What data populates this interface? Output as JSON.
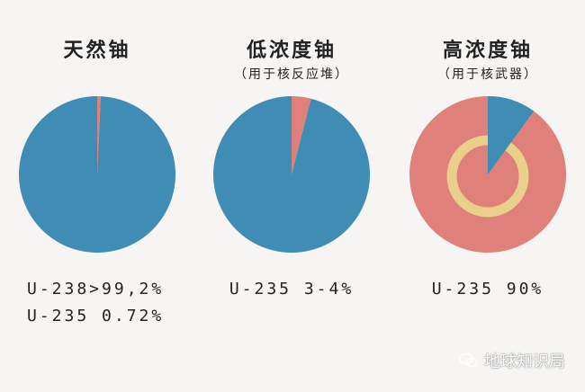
{
  "colors": {
    "blue": "#3f8cb5",
    "salmon": "#e0807a",
    "ring": "#e9cf8c",
    "background": "#f6f5f3"
  },
  "chart_data": [
    {
      "type": "pie",
      "title": "天然铀",
      "subtitle": "",
      "slices": [
        {
          "name": "U-235",
          "value": 0.72,
          "color": "#e0807a"
        },
        {
          "name": "U-238",
          "value": 99.28,
          "color": "#3f8cb5"
        }
      ],
      "notes": [
        "U-238>99,2%",
        "U-235  0.72%"
      ]
    },
    {
      "type": "pie",
      "title": "低浓度铀",
      "subtitle": "（用于核反应堆）",
      "slices": [
        {
          "name": "U-235",
          "value": 4,
          "color": "#e0807a"
        },
        {
          "name": "U-238",
          "value": 96,
          "color": "#3f8cb5"
        }
      ],
      "notes": [
        "U-235 3-4%"
      ]
    },
    {
      "type": "pie",
      "title": "高浓度铀",
      "subtitle": "（用于核武器）",
      "slices": [
        {
          "name": "U-238",
          "value": 10,
          "color": "#3f8cb5"
        },
        {
          "name": "U-235",
          "value": 90,
          "color": "#e0807a"
        }
      ],
      "ring": true,
      "notes": [
        "U-235  90%"
      ]
    }
  ],
  "watermark": {
    "text": "地球知识局",
    "icon": "wechat-icon"
  }
}
